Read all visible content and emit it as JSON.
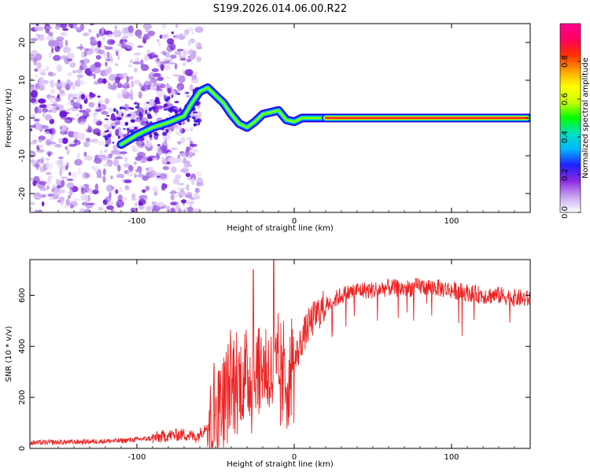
{
  "title": "S199.2026.014.06.00.R22",
  "chart_data": [
    {
      "type": "heatmap",
      "title": "S199.2026.014.06.00.R22",
      "xlabel": "Height of straight line (km)",
      "ylabel": "Frequency (Hz)",
      "xlim": [
        -168,
        150
      ],
      "ylim": [
        -25,
        25
      ],
      "xticks": [
        -100,
        0,
        100
      ],
      "yticks": [
        -20,
        -10,
        0,
        10,
        20
      ],
      "colorbar": {
        "label": "Normalized spectral amplitude",
        "range": [
          0,
          1
        ],
        "ticks": [
          0.0,
          0.2,
          0.4,
          0.6,
          0.8
        ],
        "colors": [
          "#ffffff",
          "#c9a6f0",
          "#8c2be0",
          "#2020ff",
          "#00b4ff",
          "#00e0c0",
          "#00ff00",
          "#c8ff00",
          "#ffff00",
          "#ffa000",
          "#ff3000",
          "#ff0060",
          "#ff0090"
        ]
      },
      "ridge": {
        "x": [
          -110,
          -100,
          -90,
          -80,
          -70,
          -65,
          -60,
          -55,
          -50,
          -45,
          -40,
          -35,
          -30,
          -25,
          -20,
          -15,
          -10,
          -5,
          0,
          5,
          10,
          15,
          20,
          150
        ],
        "freq": [
          -7,
          -4.5,
          -2.5,
          -1.2,
          0.5,
          4,
          7,
          8,
          6,
          4,
          1,
          -1.5,
          -2.5,
          -1,
          1,
          1.5,
          2,
          -0.5,
          -1,
          0,
          0,
          0,
          0,
          0
        ]
      }
    },
    {
      "type": "line",
      "xlabel": "Height of straight line (km)",
      "ylabel": "SNR (10 * v/v)",
      "xlim": [
        -168,
        150
      ],
      "ylim": [
        0,
        740
      ],
      "xticks": [
        -100,
        0,
        100
      ],
      "yticks": [
        0,
        200,
        400,
        600
      ],
      "color": "#ee2222",
      "series": [
        {
          "name": "SNR",
          "x": [
            -168,
            -140,
            -110,
            -90,
            -80,
            -70,
            -62,
            -58,
            -55,
            -50,
            -45,
            -40,
            -35,
            -30,
            -25,
            -20,
            -15,
            -10,
            -5,
            0,
            5,
            10,
            15,
            20,
            25,
            30,
            40,
            50,
            60,
            70,
            80,
            90,
            100,
            110,
            120,
            130,
            140,
            150
          ],
          "values": [
            22,
            25,
            30,
            40,
            50,
            55,
            45,
            70,
            100,
            150,
            200,
            240,
            260,
            280,
            300,
            320,
            290,
            280,
            260,
            330,
            430,
            490,
            530,
            560,
            580,
            600,
            620,
            620,
            630,
            625,
            635,
            630,
            620,
            610,
            600,
            600,
            590,
            585
          ]
        }
      ],
      "peaks": [
        {
          "x": -26,
          "y": 700
        },
        {
          "x": -13,
          "y": 745
        }
      ]
    }
  ]
}
